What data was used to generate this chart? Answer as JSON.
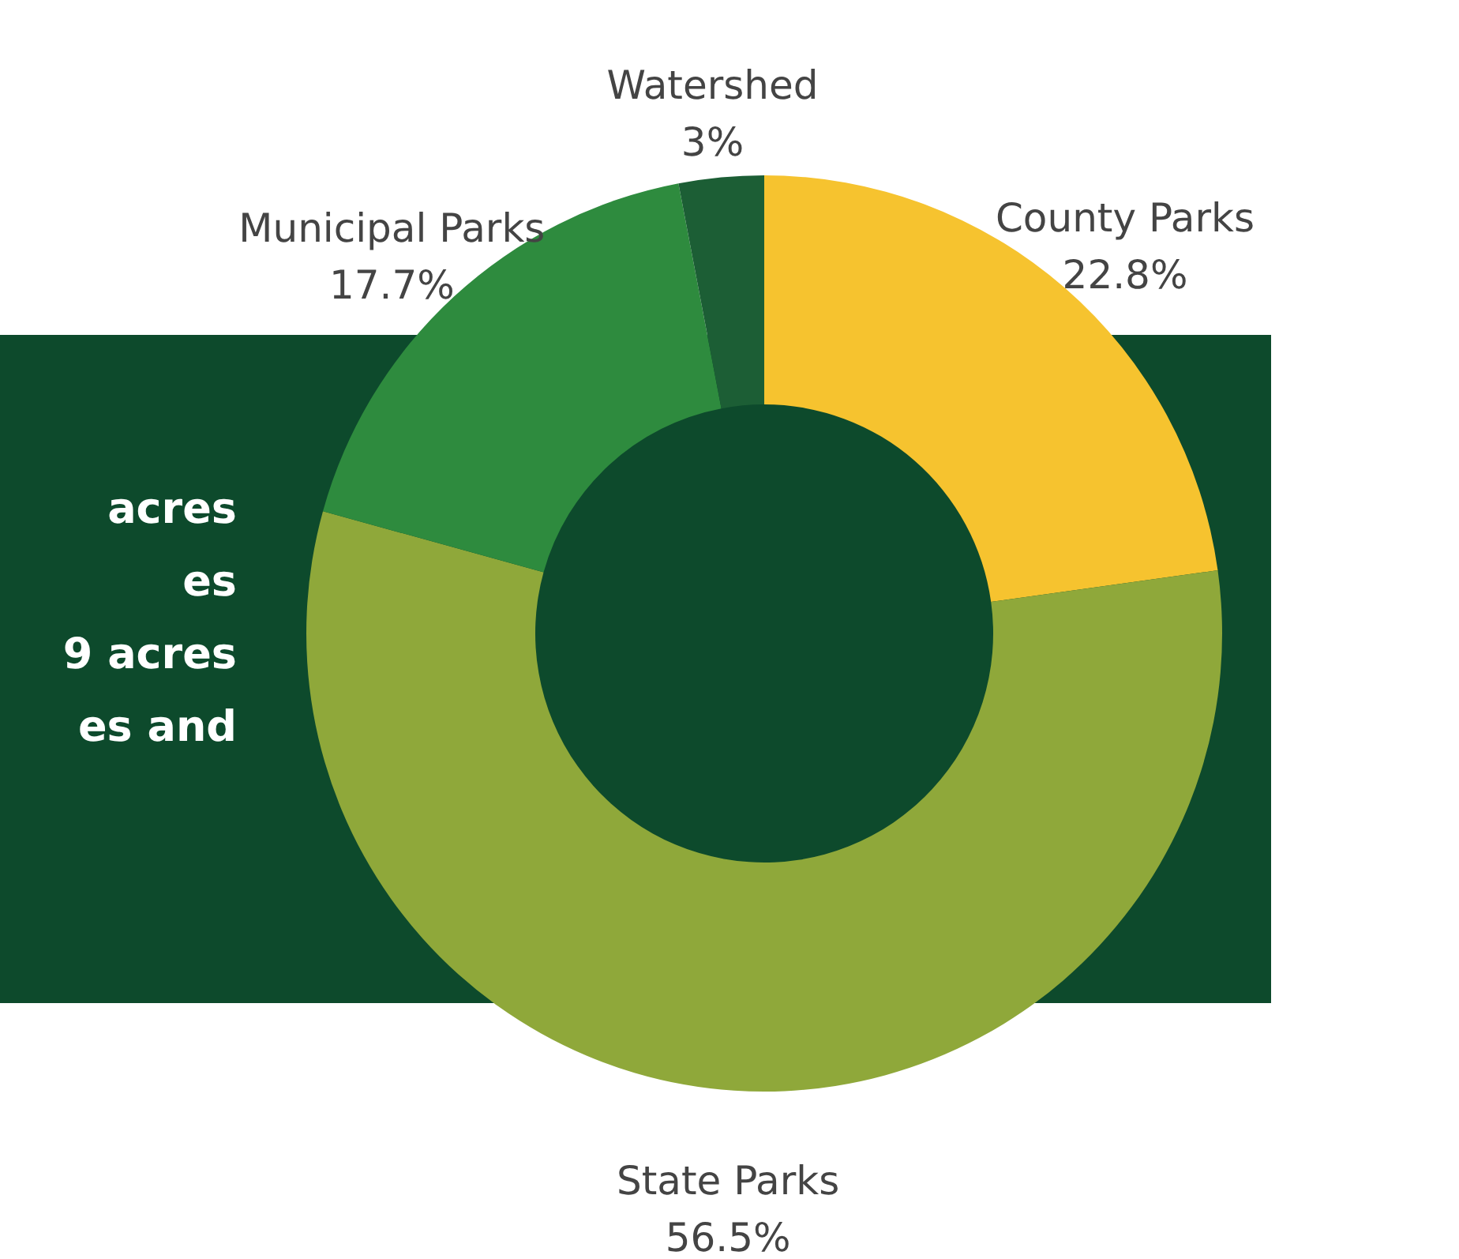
{
  "chart_data": {
    "type": "donut",
    "categories": [
      "County Parks",
      "State Parks",
      "Municipal Parks",
      "Watershed"
    ],
    "values": [
      22.8,
      56.5,
      17.7,
      3
    ],
    "value_labels": [
      "22.8%",
      "56.5%",
      "17.7%",
      "3%"
    ],
    "colors": [
      "#f6c32f",
      "#8fa83a",
      "#2e8b3e",
      "#1c5e35"
    ],
    "annotations": [
      "acres",
      "es",
      "9 acres",
      "es and"
    ]
  }
}
